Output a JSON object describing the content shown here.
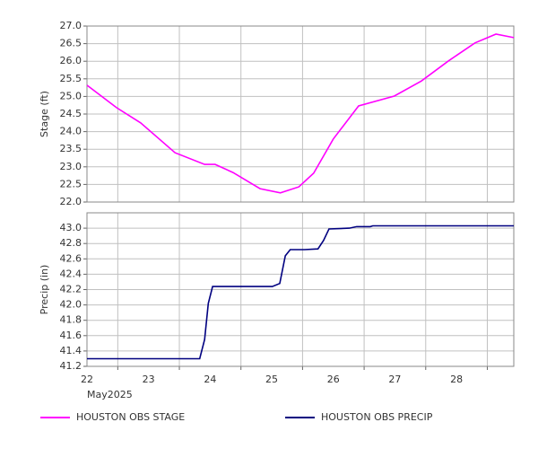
{
  "chart_data": [
    {
      "type": "line",
      "y_label": "Stage (ft)",
      "xlim": [
        22.5,
        29.43
      ],
      "xgrid": [
        23,
        24,
        25,
        26,
        27,
        28,
        29
      ],
      "ylim": [
        22,
        27
      ],
      "yticks": [
        {
          "value": 22,
          "label": "22.0"
        },
        22.5,
        {
          "value": 23,
          "label": "23.0"
        },
        23.5,
        {
          "value": 24,
          "label": "24.0"
        },
        24.5,
        {
          "value": 25,
          "label": "25.0"
        },
        25.5,
        {
          "value": 26,
          "label": "26.0"
        },
        26.5,
        {
          "value": 27,
          "label": "27.0"
        }
      ],
      "grid": true,
      "x": [
        22.5,
        22.98,
        23.37,
        23.93,
        24.41,
        24.58,
        24.87,
        25.31,
        25.64,
        25.94,
        26.18,
        26.5,
        26.91,
        27.49,
        27.93,
        28.37,
        28.8,
        29.14,
        29.43
      ],
      "series": [
        {
          "name": "HOUSTON OBS STAGE",
          "color": "#ff00ff",
          "values": [
            25.32,
            24.68,
            24.25,
            23.4,
            23.07,
            23.07,
            22.84,
            22.38,
            22.26,
            22.43,
            22.82,
            23.79,
            24.73,
            25.01,
            25.44,
            26.01,
            26.52,
            26.77,
            26.67
          ]
        }
      ]
    },
    {
      "type": "line",
      "y_label": "Precip (in)",
      "xlim": [
        22.5,
        29.43
      ],
      "xgrid": [
        23,
        24,
        25,
        26,
        27,
        28,
        29
      ],
      "xticks": [
        {
          "value": 22.5,
          "label": "22"
        },
        {
          "value": 23.5,
          "label": "23"
        },
        {
          "value": 24.5,
          "label": "24"
        },
        {
          "value": 25.5,
          "label": "25"
        },
        {
          "value": 26.5,
          "label": "26"
        },
        {
          "value": 27.5,
          "label": "27"
        },
        {
          "value": 28.5,
          "label": "28"
        }
      ],
      "x_sublabel": "May2025",
      "ylim": [
        41.2,
        43.2
      ],
      "yticks": [
        41.2,
        41.4,
        41.6,
        41.8,
        {
          "value": 42,
          "label": "42.0"
        },
        42.2,
        42.4,
        42.6,
        42.8,
        {
          "value": 43,
          "label": "43.0"
        }
      ],
      "grid": true,
      "x": [
        22.5,
        24.33,
        24.41,
        24.47,
        24.54,
        25.51,
        25.63,
        25.72,
        25.8,
        26.03,
        26.25,
        26.34,
        26.43,
        26.76,
        26.88,
        27.1,
        27.14,
        29.43
      ],
      "series": [
        {
          "name": "HOUSTON OBS PRECIP",
          "color": "#000080",
          "values": [
            41.3,
            41.3,
            41.55,
            42.02,
            42.24,
            42.24,
            42.28,
            42.64,
            42.72,
            42.72,
            42.73,
            42.84,
            42.99,
            43.0,
            43.02,
            43.02,
            43.03,
            43.03
          ]
        }
      ]
    }
  ]
}
